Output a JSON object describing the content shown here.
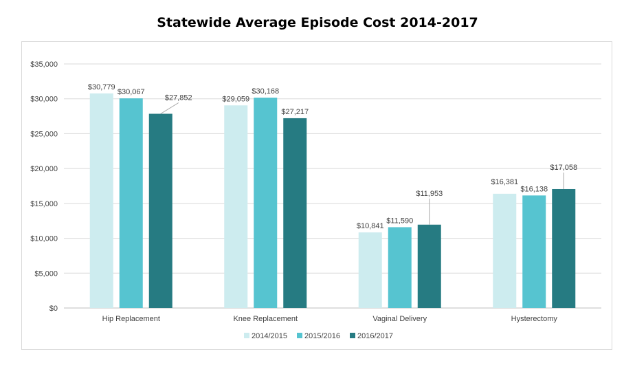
{
  "chart_data": {
    "type": "bar",
    "title": "Statewide Average Episode Cost 2014-2017",
    "xlabel": "",
    "ylabel": "",
    "ylim": [
      0,
      35000
    ],
    "y_ticks": [
      "$0",
      "$5,000",
      "$10,000",
      "$15,000",
      "$20,000",
      "$25,000",
      "$30,000",
      "$35,000"
    ],
    "y_tick_values": [
      0,
      5000,
      10000,
      15000,
      20000,
      25000,
      30000,
      35000
    ],
    "grid": true,
    "legend_position": "bottom",
    "categories": [
      "Hip Replacement",
      "Knee Replacement",
      "Vaginal Delivery",
      "Hysterectomy"
    ],
    "series": [
      {
        "name": "2014/2015",
        "color": "#cdecef",
        "values": [
          30779,
          29059,
          10841,
          16381
        ],
        "labels": [
          "$30,779",
          "$29,059",
          "$10,841",
          "$16,381"
        ]
      },
      {
        "name": "2015/2016",
        "color": "#56c4d0",
        "values": [
          30067,
          30168,
          11590,
          16138
        ],
        "labels": [
          "$30,067",
          "$30,168",
          "$11,590",
          "$16,138"
        ]
      },
      {
        "name": "2016/2017",
        "color": "#267b82",
        "values": [
          27852,
          27217,
          11953,
          17058
        ],
        "labels": [
          "$27,852",
          "$27,217",
          "$11,953",
          "$17,058"
        ]
      }
    ]
  }
}
